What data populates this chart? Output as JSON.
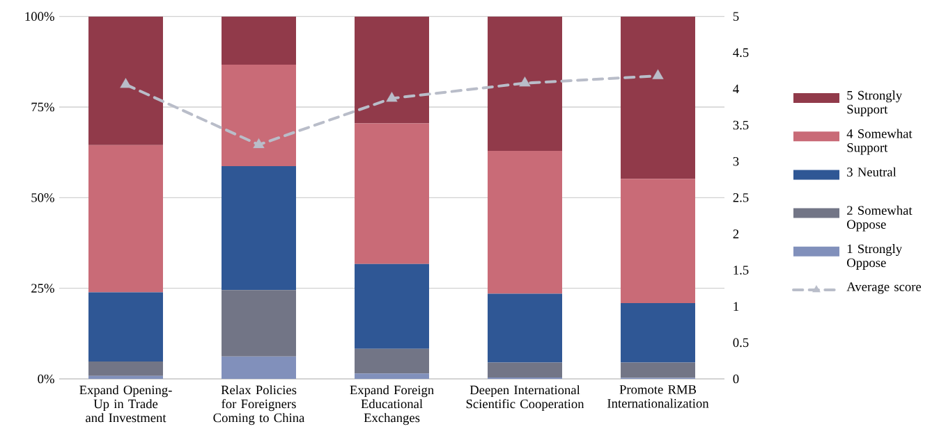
{
  "chart_data": {
    "type": "bar",
    "stacked": true,
    "categories": [
      "Expand Opening-Up in Trade and Investment",
      "Relax Policies for Foreigners Coming to China",
      "Expand Foreign Educational Exchanges",
      "Deepen International Scientific Cooperation",
      "Promote RMB Internationalization"
    ],
    "series": [
      {
        "name": "1 Strongly Oppose",
        "color": "#8190bb",
        "values": [
          0.8,
          6.2,
          1.5,
          0.4,
          0.3
        ]
      },
      {
        "name": "2 Somewhat Oppose",
        "color": "#727586",
        "values": [
          4.0,
          18.3,
          6.8,
          4.1,
          4.2
        ]
      },
      {
        "name": "3 Neutral",
        "color": "#2f5795",
        "values": [
          19.1,
          34.2,
          23.4,
          19.0,
          16.4
        ]
      },
      {
        "name": "4 Somewhat Support",
        "color": "#c96b77",
        "values": [
          40.6,
          28.0,
          38.8,
          39.4,
          34.3
        ]
      },
      {
        "name": "5 Strongly Support",
        "color": "#913a4a",
        "values": [
          35.5,
          13.3,
          29.5,
          37.1,
          44.8
        ]
      },
      {
        "name": "Average score",
        "type": "line",
        "axis": "y2",
        "color": "#b9bdc9",
        "marker": "triangle",
        "line_style": "dashed",
        "values": [
          4.06,
          3.23,
          3.87,
          4.08,
          4.18
        ]
      }
    ],
    "ylim": [
      0,
      100
    ],
    "yticks": [
      {
        "value": 0,
        "label": "0%"
      },
      {
        "value": 25,
        "label": "25%"
      },
      {
        "value": 50,
        "label": "50%"
      },
      {
        "value": 75,
        "label": "75%"
      },
      {
        "value": 100,
        "label": "100%"
      }
    ],
    "y2lim": [
      0,
      5
    ],
    "y2ticks": [
      0,
      0.5,
      1,
      1.5,
      2,
      2.5,
      3,
      3.5,
      4,
      4.5,
      5
    ],
    "grid": "y",
    "legend": "right"
  }
}
